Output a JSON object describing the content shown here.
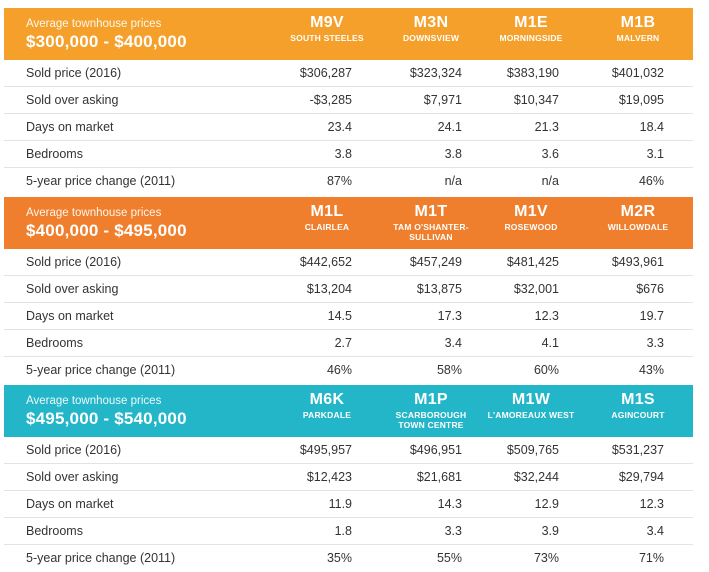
{
  "colors": {
    "section1_header": "#f4a02a",
    "section2_header": "#ef7f2c",
    "section3_header": "#23b6c8",
    "row_divider": "#e3e3e3",
    "text": "#333333"
  },
  "sections": [
    {
      "header_label": "Average townhouse prices",
      "price_range": "$300,000 - $400,000",
      "areas": [
        {
          "code": "M9V",
          "name": "SOUTH STEELES"
        },
        {
          "code": "M3N",
          "name": "DOWNSVIEW"
        },
        {
          "code": "M1E",
          "name": "MORNINGSIDE"
        },
        {
          "code": "M1B",
          "name": "MALVERN"
        }
      ],
      "rows": [
        {
          "label": "Sold price (2016)",
          "values": [
            "$306,287",
            "$323,324",
            "$383,190",
            "$401,032"
          ]
        },
        {
          "label": "Sold over asking",
          "values": [
            "-$3,285",
            "$7,971",
            "$10,347",
            "$19,095"
          ]
        },
        {
          "label": "Days on market",
          "values": [
            "23.4",
            "24.1",
            "21.3",
            "18.4"
          ]
        },
        {
          "label": "Bedrooms",
          "values": [
            "3.8",
            "3.8",
            "3.6",
            "3.1"
          ]
        },
        {
          "label": "5-year price change (2011)",
          "values": [
            "87%",
            "n/a",
            "n/a",
            "46%"
          ]
        }
      ]
    },
    {
      "header_label": "Average townhouse prices",
      "price_range": "$400,000 - $495,000",
      "areas": [
        {
          "code": "M1L",
          "name": "CLAIRLEA"
        },
        {
          "code": "M1T",
          "name": "TAM O'SHANTER-SULLIVAN"
        },
        {
          "code": "M1V",
          "name": "ROSEWOOD"
        },
        {
          "code": "M2R",
          "name": "WILLOWDALE"
        }
      ],
      "rows": [
        {
          "label": "Sold price (2016)",
          "values": [
            "$442,652",
            "$457,249",
            "$481,425",
            "$493,961"
          ]
        },
        {
          "label": "Sold over asking",
          "values": [
            "$13,204",
            "$13,875",
            "$32,001",
            "$676"
          ]
        },
        {
          "label": "Days on market",
          "values": [
            "14.5",
            "17.3",
            "12.3",
            "19.7"
          ]
        },
        {
          "label": "Bedrooms",
          "values": [
            "2.7",
            "3.4",
            "4.1",
            "3.3"
          ]
        },
        {
          "label": "5-year price change (2011)",
          "values": [
            "46%",
            "58%",
            "60%",
            "43%"
          ]
        }
      ]
    },
    {
      "header_label": "Average townhouse prices",
      "price_range": "$495,000 - $540,000",
      "areas": [
        {
          "code": "M6K",
          "name": "PARKDALE"
        },
        {
          "code": "M1P",
          "name": "SCARBOROUGH TOWN CENTRE"
        },
        {
          "code": "M1W",
          "name": "L'AMOREAUX WEST"
        },
        {
          "code": "M1S",
          "name": "AGINCOURT"
        }
      ],
      "rows": [
        {
          "label": "Sold price (2016)",
          "values": [
            "$495,957",
            "$496,951",
            "$509,765",
            "$531,237"
          ]
        },
        {
          "label": "Sold over asking",
          "values": [
            "$12,423",
            "$21,681",
            "$32,244",
            "$29,794"
          ]
        },
        {
          "label": "Days on market",
          "values": [
            "11.9",
            "14.3",
            "12.9",
            "12.3"
          ]
        },
        {
          "label": "Bedrooms",
          "values": [
            "1.8",
            "3.3",
            "3.9",
            "3.4"
          ]
        },
        {
          "label": "5-year price change (2011)",
          "values": [
            "35%",
            "55%",
            "73%",
            "71%"
          ]
        }
      ]
    }
  ]
}
